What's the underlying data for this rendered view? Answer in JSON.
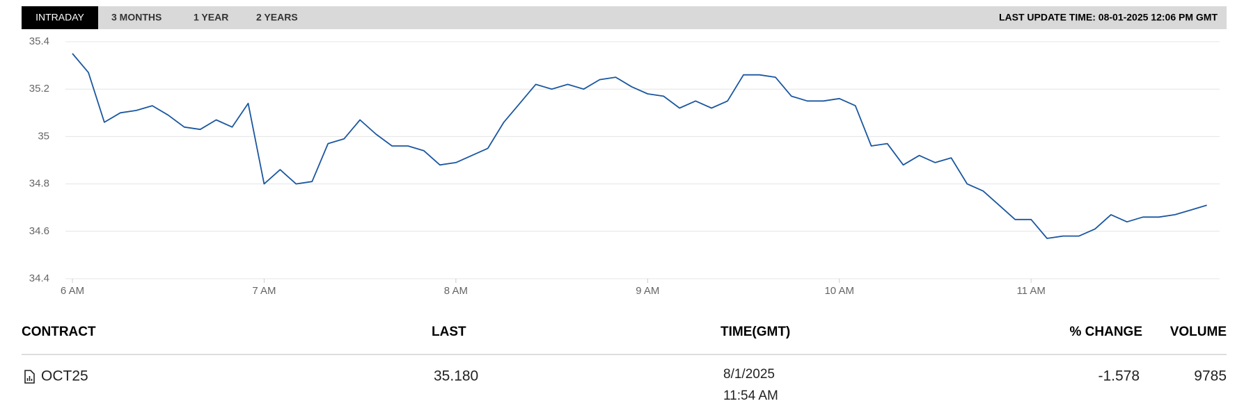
{
  "tabs": [
    "INTRADAY",
    "3 MONTHS",
    "1 YEAR",
    "2 YEARS"
  ],
  "last_update": "LAST UPDATE TIME: 08-01-2025 12:06 PM GMT",
  "chart_data": {
    "type": "line",
    "x": [
      360,
      365,
      370,
      375,
      380,
      385,
      390,
      395,
      400,
      405,
      410,
      415,
      420,
      425,
      430,
      435,
      440,
      445,
      450,
      455,
      460,
      465,
      470,
      475,
      480,
      485,
      490,
      495,
      500,
      505,
      510,
      515,
      520,
      525,
      530,
      535,
      540,
      545,
      550,
      555,
      560,
      565,
      570,
      575,
      580,
      585,
      590,
      595,
      600,
      605,
      610,
      615,
      620,
      625,
      630,
      635,
      640,
      645,
      650,
      655,
      660,
      665,
      670,
      675,
      680,
      685,
      690,
      695,
      700,
      705,
      710,
      715
    ],
    "values": [
      35.35,
      35.27,
      35.06,
      35.1,
      35.11,
      35.13,
      35.09,
      35.04,
      35.03,
      35.07,
      35.04,
      35.14,
      34.8,
      34.86,
      34.8,
      34.81,
      34.97,
      34.99,
      35.07,
      35.01,
      34.96,
      34.96,
      34.94,
      34.88,
      34.89,
      34.92,
      34.95,
      35.06,
      35.14,
      35.22,
      35.2,
      35.22,
      35.2,
      35.24,
      35.25,
      35.21,
      35.18,
      35.17,
      35.12,
      35.15,
      35.12,
      35.15,
      35.26,
      35.26,
      35.25,
      35.17,
      35.15,
      35.15,
      35.16,
      35.13,
      34.96,
      34.97,
      34.88,
      34.92,
      34.89,
      34.91,
      34.8,
      34.77,
      34.71,
      34.65,
      34.65,
      34.57,
      34.58,
      34.58,
      34.61,
      34.67,
      34.64,
      34.66,
      34.66,
      34.67,
      34.69,
      34.71
    ],
    "color": "#1a56a0",
    "xlim": [
      360,
      719
    ],
    "xticks": [
      {
        "value": 360,
        "label": "6 AM"
      },
      {
        "value": 420,
        "label": "7 AM"
      },
      {
        "value": 480,
        "label": "8 AM"
      },
      {
        "value": 540,
        "label": "9 AM"
      },
      {
        "value": 600,
        "label": "10 AM"
      },
      {
        "value": 660,
        "label": "11 AM"
      }
    ],
    "ylim": [
      34.4,
      35.4
    ],
    "yticks": [
      34.4,
      34.6,
      34.8,
      35,
      35.2,
      35.4
    ],
    "grid": true
  },
  "table": {
    "headers": [
      "CONTRACT",
      "LAST",
      "TIME(GMT)",
      "% CHANGE",
      "VOLUME"
    ],
    "row": {
      "contract": "OCT25",
      "last": "35.180",
      "date": "8/1/2025",
      "time": "11:54 AM",
      "change": "-1.578",
      "volume": "9785"
    }
  }
}
